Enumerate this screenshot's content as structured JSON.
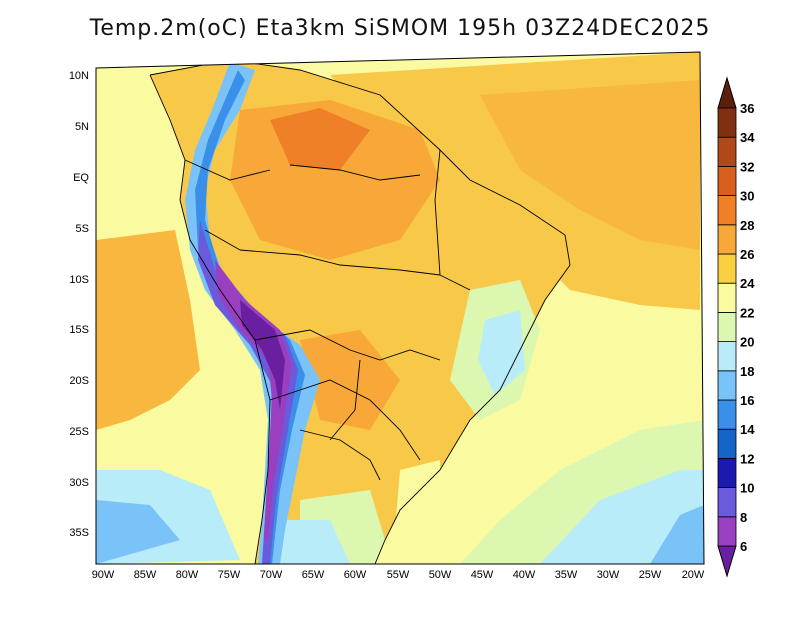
{
  "title": "Temp.2m(oC) Eta3km SiSMOM 195h 03Z24DEC2025",
  "map": {
    "variable": "Temp.2m",
    "units": "oC",
    "model": "Eta3km SiSMOM",
    "forecast_hour": "195h",
    "valid_time": "03Z24DEC2025",
    "lat_labels": [
      "10N",
      "5N",
      "EQ",
      "5S",
      "10S",
      "15S",
      "20S",
      "25S",
      "30S",
      "35S"
    ],
    "lon_labels": [
      "90W",
      "85W",
      "80W",
      "75W",
      "70W",
      "65W",
      "60W",
      "55W",
      "50W",
      "45W",
      "40W",
      "35W",
      "30W",
      "25W",
      "20W"
    ]
  },
  "colorbar": {
    "levels": [
      "6",
      "8",
      "10",
      "12",
      "14",
      "16",
      "18",
      "20",
      "22",
      "24",
      "26",
      "28",
      "30",
      "32",
      "34",
      "36"
    ],
    "colors": [
      "#6a1fa0",
      "#9a3fc0",
      "#6a5bdc",
      "#1a1ab0",
      "#1565c8",
      "#3a8fe8",
      "#7ac3f8",
      "#b8ecf8",
      "#dcf8b0",
      "#fafaa0",
      "#f8d040",
      "#f8a838",
      "#f08028",
      "#d8601c",
      "#b04818",
      "#803010",
      "#5a200c"
    ]
  }
}
